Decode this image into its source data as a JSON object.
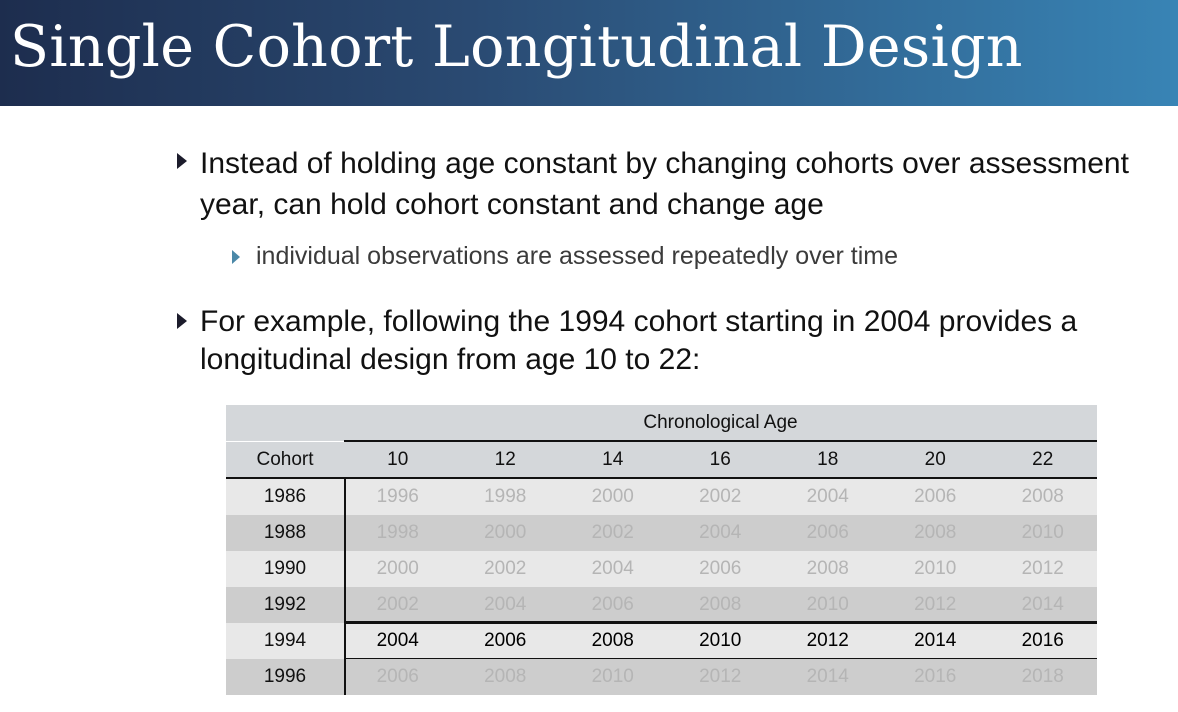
{
  "slide": {
    "title": "Single Cohort Longitudinal Design",
    "bullets": [
      {
        "text": "Instead of holding age constant by changing cohorts over assessment year, can hold cohort constant and change age",
        "sub": "individual observations are assessed repeatedly over time"
      },
      {
        "text": "For example, following the 1994 cohort starting in 2004 provides a longitudinal design from age 10 to 22:"
      }
    ]
  },
  "table": {
    "group_header": "Chronological Age",
    "row_header": "Cohort",
    "ages": [
      "10",
      "12",
      "14",
      "16",
      "18",
      "20",
      "22"
    ],
    "highlighted_cohort": "1994",
    "rows": [
      {
        "cohort": "1986",
        "years": [
          "1996",
          "1998",
          "2000",
          "2002",
          "2004",
          "2006",
          "2008"
        ]
      },
      {
        "cohort": "1988",
        "years": [
          "1998",
          "2000",
          "2002",
          "2004",
          "2006",
          "2008",
          "2010"
        ]
      },
      {
        "cohort": "1990",
        "years": [
          "2000",
          "2002",
          "2004",
          "2006",
          "2008",
          "2010",
          "2012"
        ]
      },
      {
        "cohort": "1992",
        "years": [
          "2002",
          "2004",
          "2006",
          "2008",
          "2010",
          "2012",
          "2014"
        ]
      },
      {
        "cohort": "1994",
        "years": [
          "2004",
          "2006",
          "2008",
          "2010",
          "2012",
          "2014",
          "2016"
        ]
      },
      {
        "cohort": "1996",
        "years": [
          "2006",
          "2008",
          "2010",
          "2012",
          "2014",
          "2016",
          "2018"
        ]
      }
    ],
    "colors": {
      "row_light": "#e8e8e8",
      "row_dark": "#cdcdcd",
      "header": "#d4d7da",
      "dim_text": "#b5b5b5"
    }
  }
}
